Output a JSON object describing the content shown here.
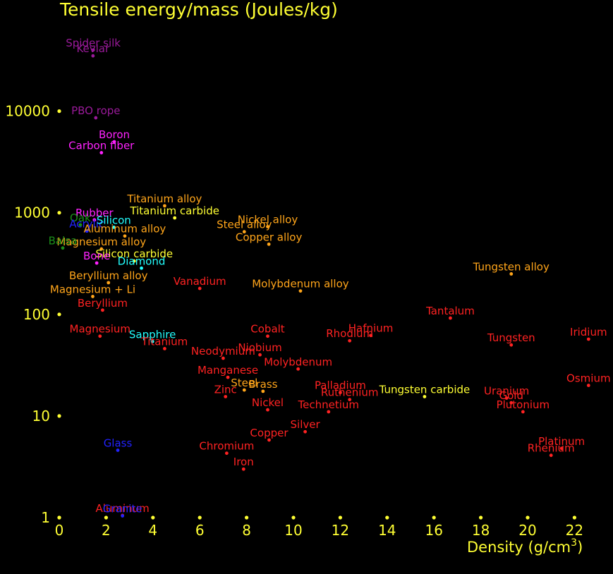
{
  "chart_data": {
    "type": "scatter",
    "title": "Tensile energy/mass (Joules/kg)",
    "xlabel": "Density",
    "xlabel_unit": "(g/cm",
    "xlabel_unit_exp": "3",
    "xlabel_unit_close": ")",
    "x_ticks": [
      "0",
      "2",
      "4",
      "6",
      "8",
      "10",
      "12",
      "14",
      "16",
      "18",
      "20",
      "22"
    ],
    "x_tick_values": [
      0,
      2,
      4,
      6,
      8,
      10,
      12,
      14,
      16,
      18,
      20,
      22
    ],
    "y_ticks": [
      "1",
      "10",
      "100",
      "1000",
      "10000"
    ],
    "y_tick_values": [
      1,
      10,
      100,
      1000,
      10000
    ],
    "y_scale": "log",
    "xlim": [
      0,
      23.5
    ],
    "ylim": [
      1,
      60000
    ],
    "grid": false,
    "legend": "none",
    "colors": {
      "background": "#000000",
      "axis": "#ffff33",
      "purple": "#9a1a9a",
      "magenta": "#ff22ff",
      "orange": "#ffa51a",
      "yellow": "#ffff33",
      "red": "#ff2222",
      "cyan": "#22ffff",
      "blue": "#2222ff",
      "green": "#1a8f1a"
    },
    "points": [
      {
        "label": "Spider silk",
        "x": 1.45,
        "y": 40000,
        "color": "purple"
      },
      {
        "label": "Kevlar",
        "x": 1.44,
        "y": 35000,
        "color": "purple"
      },
      {
        "label": "PBO rope",
        "x": 1.56,
        "y": 8600,
        "color": "purple"
      },
      {
        "label": "Boron",
        "x": 2.35,
        "y": 5000,
        "color": "magenta"
      },
      {
        "label": "Carbon fiber",
        "x": 1.8,
        "y": 3900,
        "color": "magenta"
      },
      {
        "label": "Titanium alloy",
        "x": 4.5,
        "y": 1170,
        "color": "orange"
      },
      {
        "label": "Titanium carbide",
        "x": 4.93,
        "y": 890,
        "color": "yellow"
      },
      {
        "label": "Nickel alloy",
        "x": 8.9,
        "y": 730,
        "color": "orange"
      },
      {
        "label": "Steel alloy",
        "x": 7.9,
        "y": 650,
        "color": "orange"
      },
      {
        "label": "Copper alloy",
        "x": 8.95,
        "y": 490,
        "color": "orange"
      },
      {
        "label": "Rubber",
        "x": 1.5,
        "y": 850,
        "color": "magenta"
      },
      {
        "label": "Oak",
        "x": 0.9,
        "y": 760,
        "color": "green"
      },
      {
        "label": "Acrylic",
        "x": 1.18,
        "y": 660,
        "color": "blue"
      },
      {
        "label": "Silicon",
        "x": 2.33,
        "y": 720,
        "color": "cyan"
      },
      {
        "label": "Aluminum alloy",
        "x": 2.8,
        "y": 590,
        "color": "orange"
      },
      {
        "label": "Magnesium alloy",
        "x": 1.8,
        "y": 440,
        "color": "orange"
      },
      {
        "label": "Silicon carbide",
        "x": 3.2,
        "y": 335,
        "color": "yellow"
      },
      {
        "label": "Balsa",
        "x": 0.15,
        "y": 450,
        "color": "green"
      },
      {
        "label": "Bone",
        "x": 1.6,
        "y": 320,
        "color": "magenta"
      },
      {
        "label": "Diamond",
        "x": 3.51,
        "y": 285,
        "color": "cyan"
      },
      {
        "label": "Beryllium alloy",
        "x": 2.1,
        "y": 205,
        "color": "orange"
      },
      {
        "label": "Magnesium + Li",
        "x": 1.43,
        "y": 150,
        "color": "orange"
      },
      {
        "label": "Beryllium",
        "x": 1.85,
        "y": 110,
        "color": "red"
      },
      {
        "label": "Vanadium",
        "x": 6.0,
        "y": 180,
        "color": "red"
      },
      {
        "label": "Molybdenum alloy",
        "x": 10.3,
        "y": 170,
        "color": "orange"
      },
      {
        "label": "Tungsten alloy",
        "x": 19.3,
        "y": 250,
        "color": "orange"
      },
      {
        "label": "Tantalum",
        "x": 16.7,
        "y": 92,
        "color": "red"
      },
      {
        "label": "Magnesium",
        "x": 1.74,
        "y": 61,
        "color": "red"
      },
      {
        "label": "Sapphire",
        "x": 3.98,
        "y": 54,
        "color": "cyan"
      },
      {
        "label": "Titanium",
        "x": 4.5,
        "y": 46,
        "color": "red"
      },
      {
        "label": "Cobalt",
        "x": 8.9,
        "y": 61,
        "color": "red"
      },
      {
        "label": "Niobium",
        "x": 8.57,
        "y": 40,
        "color": "red"
      },
      {
        "label": "Neodymium",
        "x": 7.0,
        "y": 37,
        "color": "red"
      },
      {
        "label": "Hafnium",
        "x": 13.3,
        "y": 62,
        "color": "red"
      },
      {
        "label": "Rhodium",
        "x": 12.4,
        "y": 55,
        "color": "red"
      },
      {
        "label": "Tungsten",
        "x": 19.3,
        "y": 50,
        "color": "red"
      },
      {
        "label": "Iridium",
        "x": 22.6,
        "y": 57,
        "color": "red"
      },
      {
        "label": "Molybdenum",
        "x": 10.2,
        "y": 29,
        "color": "red"
      },
      {
        "label": "Manganese",
        "x": 7.2,
        "y": 24,
        "color": "red"
      },
      {
        "label": "Steel",
        "x": 7.9,
        "y": 18,
        "color": "orange"
      },
      {
        "label": "Brass",
        "x": 8.7,
        "y": 17.5,
        "color": "orange"
      },
      {
        "label": "Zinc",
        "x": 7.1,
        "y": 15.5,
        "color": "red"
      },
      {
        "label": "Palladium",
        "x": 12.0,
        "y": 17,
        "color": "red"
      },
      {
        "label": "Ruthenium",
        "x": 12.4,
        "y": 14.5,
        "color": "red"
      },
      {
        "label": "Tungsten carbide",
        "x": 15.6,
        "y": 15.5,
        "color": "yellow"
      },
      {
        "label": "Uranium",
        "x": 19.1,
        "y": 15,
        "color": "red"
      },
      {
        "label": "Gold",
        "x": 19.3,
        "y": 13.5,
        "color": "red"
      },
      {
        "label": "Osmium",
        "x": 22.6,
        "y": 20,
        "color": "red"
      },
      {
        "label": "Plutonium",
        "x": 19.8,
        "y": 11,
        "color": "red"
      },
      {
        "label": "Nickel",
        "x": 8.9,
        "y": 11.5,
        "color": "red"
      },
      {
        "label": "Technetium",
        "x": 11.5,
        "y": 11,
        "color": "red"
      },
      {
        "label": "Silver",
        "x": 10.5,
        "y": 7.0,
        "color": "red"
      },
      {
        "label": "Copper",
        "x": 8.96,
        "y": 5.8,
        "color": "red"
      },
      {
        "label": "Glass",
        "x": 2.5,
        "y": 4.6,
        "color": "blue"
      },
      {
        "label": "Chromium",
        "x": 7.15,
        "y": 4.3,
        "color": "red"
      },
      {
        "label": "Iron",
        "x": 7.87,
        "y": 3.0,
        "color": "red"
      },
      {
        "label": "Platinum",
        "x": 21.45,
        "y": 4.8,
        "color": "red"
      },
      {
        "label": "Rhenium",
        "x": 21.0,
        "y": 4.1,
        "color": "red"
      },
      {
        "label": "Aluminum",
        "x": 2.7,
        "y": 1.05,
        "color": "red"
      },
      {
        "label": "Granite",
        "x": 2.7,
        "y": 1.04,
        "color": "blue"
      }
    ]
  }
}
